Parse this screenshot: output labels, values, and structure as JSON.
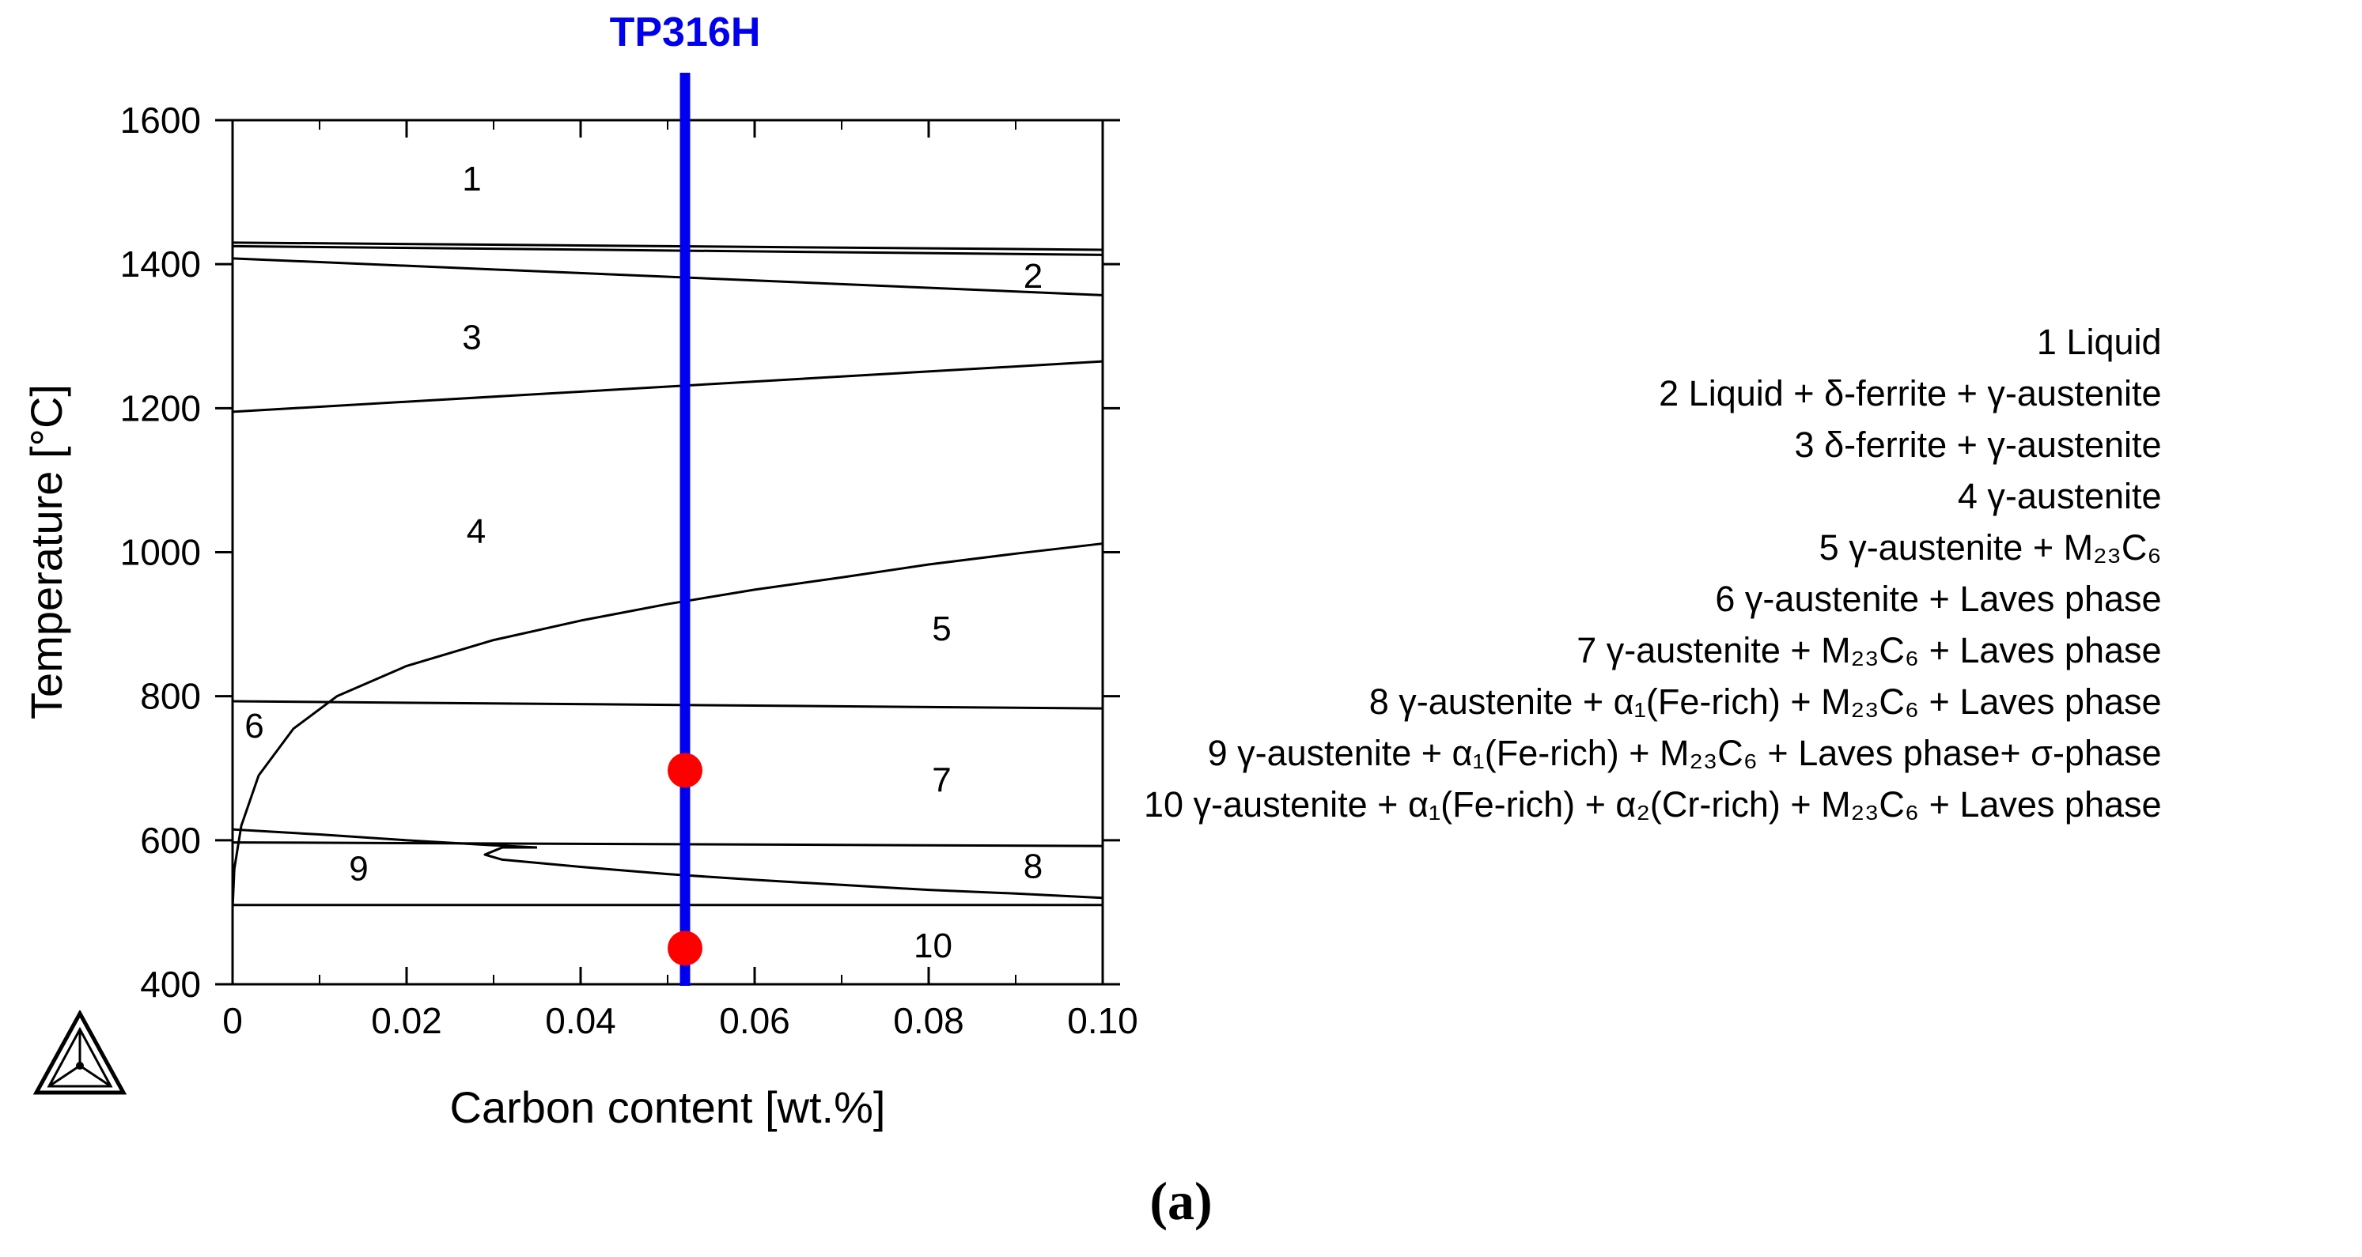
{
  "caption": "(a)",
  "legend": {
    "items": [
      "1 Liquid",
      "2 Liquid + δ-ferrite + γ-austenite",
      "3 δ-ferrite + γ-austenite",
      "4 γ-austenite",
      "5 γ-austenite + M₂₃C₆",
      "6 γ-austenite + Laves phase",
      "7 γ-austenite + M₂₃C₆ + Laves phase",
      "8 γ-austenite + α₁(Fe-rich) + M₂₃C₆ + Laves phase",
      "9 γ-austenite + α₁(Fe-rich) + M₂₃C₆ + Laves phase+ σ-phase",
      "10 γ-austenite + α₁(Fe-rich) + α₂(Cr-rich) + M₂₃C₆ + Laves phase"
    ]
  },
  "chart_data": {
    "type": "line",
    "xlabel": "Carbon content [wt.%]",
    "ylabel": "Temperature [°C]",
    "xlim": [
      0,
      0.1
    ],
    "ylim": [
      400,
      1600
    ],
    "x_ticks": [
      "0",
      "0.02",
      "0.04",
      "0.06",
      "0.08",
      "0.10"
    ],
    "x_tick_values": [
      0,
      0.02,
      0.04,
      0.06,
      0.08,
      0.1
    ],
    "y_ticks": [
      "400",
      "600",
      "800",
      "1000",
      "1200",
      "1400",
      "1600"
    ],
    "y_tick_values": [
      400,
      600,
      800,
      1000,
      1200,
      1400,
      1600
    ],
    "line_color": "#000000",
    "boundaries": [
      {
        "x": [
          0,
          0.1
        ],
        "y": [
          1430,
          1420
        ]
      },
      {
        "x": [
          0,
          0.1
        ],
        "y": [
          1425,
          1413
        ]
      },
      {
        "x": [
          0,
          0.1
        ],
        "y": [
          1408,
          1357
        ]
      },
      {
        "x": [
          0,
          0.1
        ],
        "y": [
          1195,
          1265
        ]
      },
      {
        "x": [
          0,
          0.0002,
          0.001,
          0.003,
          0.007,
          0.012,
          0.02,
          0.03,
          0.04,
          0.05,
          0.06,
          0.07,
          0.08,
          0.09,
          0.1
        ],
        "y": [
          505,
          560,
          620,
          690,
          755,
          800,
          842,
          878,
          905,
          928,
          948,
          965,
          983,
          998,
          1012
        ]
      },
      {
        "x": [
          0,
          0.1
        ],
        "y": [
          793,
          783
        ]
      },
      {
        "x": [
          0,
          0.1
        ],
        "y": [
          597,
          592
        ]
      },
      {
        "x": [
          0,
          0.01,
          0.02,
          0.03,
          0.035
        ],
        "y": [
          615,
          608,
          600,
          593,
          590
        ]
      },
      {
        "x": [
          0.035,
          0.031,
          0.029,
          0.031,
          0.04,
          0.05,
          0.06,
          0.07,
          0.08,
          0.09,
          0.1
        ],
        "y": [
          590,
          590,
          580,
          573,
          563,
          553,
          545,
          538,
          531,
          526,
          520
        ]
      },
      {
        "x": [
          0,
          0.1
        ],
        "y": [
          510,
          510
        ]
      }
    ],
    "region_labels": [
      {
        "text": "1",
        "x": 0.0275,
        "y": 1520
      },
      {
        "text": "2",
        "x": 0.092,
        "y": 1385
      },
      {
        "text": "3",
        "x": 0.0275,
        "y": 1300
      },
      {
        "text": "4",
        "x": 0.028,
        "y": 1030
      },
      {
        "text": "5",
        "x": 0.0815,
        "y": 895
      },
      {
        "text": "6",
        "x": 0.0025,
        "y": 760
      },
      {
        "text": "7",
        "x": 0.0815,
        "y": 685
      },
      {
        "text": "8",
        "x": 0.092,
        "y": 565
      },
      {
        "text": "9",
        "x": 0.0145,
        "y": 562
      },
      {
        "text": "10",
        "x": 0.0805,
        "y": 455
      }
    ],
    "composition_line": {
      "label": "TP316H",
      "x": 0.052,
      "color": "#0000ee"
    },
    "markers": [
      {
        "x": 0.052,
        "y": 697,
        "color": "#ff0000"
      },
      {
        "x": 0.052,
        "y": 450,
        "color": "#ff0000"
      }
    ]
  }
}
